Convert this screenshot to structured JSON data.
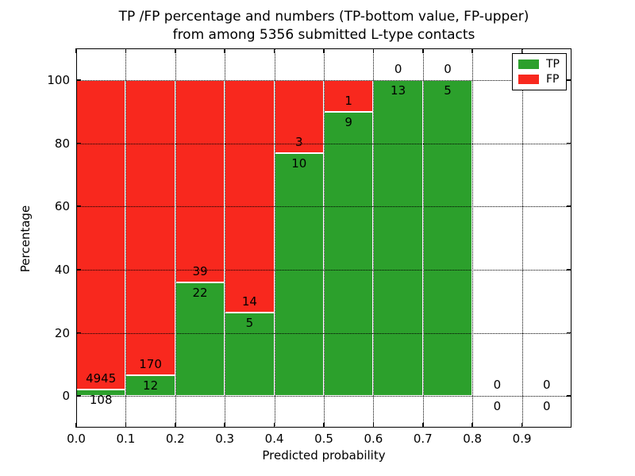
{
  "title_line1": "TP /FP percentage and numbers (TP-bottom value, FP-upper)",
  "title_line2": "from among 5356 submitted L-type contacts",
  "chart_data": {
    "type": "bar",
    "stacked": true,
    "title": "TP /FP percentage and numbers (TP-bottom value, FP-upper) from among 5356 submitted L-type contacts",
    "xlabel": "Predicted probability",
    "ylabel": "Percentage",
    "total_submitted": 5356,
    "xlim": [
      0.0,
      1.0
    ],
    "ylim": [
      -10,
      110
    ],
    "bin_width": 0.1,
    "bin_starts": [
      0.0,
      0.1,
      0.2,
      0.3,
      0.4,
      0.5,
      0.6,
      0.7,
      0.8,
      0.9
    ],
    "x_ticks": [
      0.0,
      0.1,
      0.2,
      0.3,
      0.4,
      0.5,
      0.6,
      0.7,
      0.8,
      0.9
    ],
    "x_tick_labels": [
      "0.0",
      "0.1",
      "0.2",
      "0.3",
      "0.4",
      "0.5",
      "0.6",
      "0.7",
      "0.8",
      "0.9"
    ],
    "y_ticks": [
      0,
      20,
      40,
      60,
      80,
      100
    ],
    "y_tick_labels": [
      "0",
      "20",
      "40",
      "60",
      "80",
      "100"
    ],
    "series": [
      {
        "name": "TP",
        "color": "#2CA02C",
        "counts": [
          108,
          12,
          22,
          5,
          10,
          9,
          13,
          5,
          0,
          0
        ]
      },
      {
        "name": "FP",
        "color": "#F8281E",
        "counts": [
          4945,
          170,
          39,
          14,
          3,
          1,
          0,
          0,
          0,
          0
        ]
      }
    ],
    "tp_percent": [
      2.1,
      6.6,
      36.1,
      26.3,
      76.9,
      90.0,
      100.0,
      100.0,
      0.0,
      0.0
    ],
    "value_label_scheme": "FP count above TP-bar top, TP count below TP-bar top",
    "bar_edge_color": "#FFFFFF",
    "grid": {
      "style": "dotted",
      "color": "#000000",
      "above_bars": true
    },
    "legend_position": "upper right"
  }
}
